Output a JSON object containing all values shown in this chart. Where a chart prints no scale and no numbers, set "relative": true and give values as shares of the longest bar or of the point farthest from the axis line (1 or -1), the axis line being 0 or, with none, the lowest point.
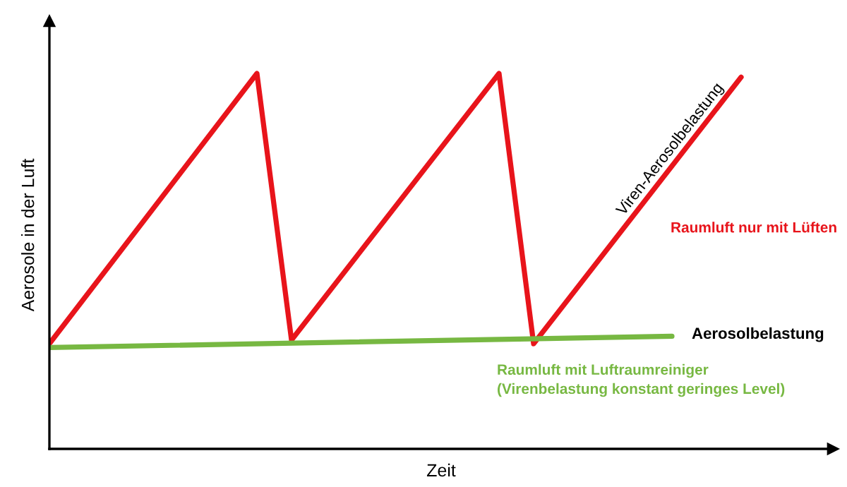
{
  "chart_data": {
    "type": "line",
    "relative": true,
    "xlabel": "Zeit",
    "ylabel": "Aerosole in der Luft",
    "categories": [
      null,
      null,
      null,
      null,
      null,
      null,
      null,
      null,
      null,
      null,
      null,
      null,
      null,
      null,
      null,
      null,
      null,
      null,
      null,
      null,
      null
    ],
    "legend": false,
    "marker": "none",
    "line_style": "solid",
    "series": [
      {
        "name": "Raumluft nur mit Lüften",
        "color": "#e8141b",
        "values": [
          0.28,
          null,
          null,
          null,
          null,
          null,
          1,
          0.29,
          null,
          null,
          null,
          null,
          null,
          1,
          0.28,
          null,
          null,
          null,
          null,
          null,
          0.99
        ]
      },
      {
        "name": "Raumluft mit Luftraumreiniger\n(Virenbelastung konstant geringes Level)",
        "color": "#77b842",
        "values": [
          0.27,
          null,
          null,
          null,
          null,
          null,
          null,
          null,
          null,
          null,
          null,
          null,
          null,
          null,
          null,
          null,
          null,
          null,
          0.3,
          null,
          null
        ]
      }
    ],
    "annotations": [
      "Viren-Aerosolbelastung",
      "Aerosolbelastung"
    ]
  }
}
